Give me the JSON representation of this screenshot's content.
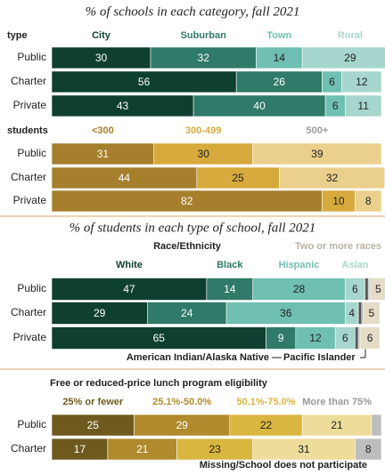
{
  "chart_data": [
    {
      "type": "bar",
      "orientation": "horizontal",
      "stacked": true,
      "title": "% of schools in each category, fall 2021",
      "group_label": "type",
      "categories": [
        "Public",
        "Charter",
        "Private"
      ],
      "xlim": [
        0,
        100
      ],
      "series": [
        {
          "name": "City",
          "color": "#0f3f31",
          "values": [
            30,
            56,
            43
          ]
        },
        {
          "name": "Suburban",
          "color": "#2f7a68",
          "values": [
            32,
            26,
            40
          ]
        },
        {
          "name": "Town",
          "color": "#6fbfb2",
          "values": [
            14,
            6,
            6
          ]
        },
        {
          "name": "Rural",
          "color": "#a6d6cd",
          "values": [
            29,
            12,
            11
          ]
        }
      ]
    },
    {
      "type": "bar",
      "orientation": "horizontal",
      "stacked": true,
      "group_label": "students",
      "categories": [
        "Public",
        "Charter",
        "Private"
      ],
      "xlim": [
        0,
        100
      ],
      "series": [
        {
          "name": "<300",
          "color": "#a67f2c",
          "values": [
            31,
            44,
            82
          ]
        },
        {
          "name": "300-499",
          "color": "#d6aa3c",
          "values": [
            30,
            25,
            10
          ]
        },
        {
          "name": "500+",
          "color": "#ead08c",
          "values": [
            39,
            32,
            8
          ]
        }
      ]
    },
    {
      "type": "bar",
      "orientation": "horizontal",
      "stacked": true,
      "title": "% of students in each type of school, fall 2021",
      "subtitle": "Race/Ethnicity",
      "categories": [
        "Public",
        "Charter",
        "Private"
      ],
      "xlim": [
        0,
        100
      ],
      "series": [
        {
          "name": "White",
          "color": "#0f3f31",
          "values": [
            47,
            29,
            65
          ]
        },
        {
          "name": "Black",
          "color": "#2f7a68",
          "values": [
            14,
            24,
            9
          ]
        },
        {
          "name": "Hispanic",
          "color": "#6fbfb2",
          "values": [
            28,
            36,
            12
          ]
        },
        {
          "name": "Asian",
          "color": "#a6d6cd",
          "values": [
            6,
            4,
            6
          ]
        },
        {
          "name": "American Indian/Alaska Native",
          "color": "#555555",
          "values": [
            1,
            1,
            1
          ]
        },
        {
          "name": "Pacific Islander",
          "color": "#b0b0b0",
          "values": [
            0.5,
            0.5,
            0.5
          ]
        },
        {
          "name": "Two or more races",
          "color": "#e4dcc6",
          "values": [
            5,
            5,
            6
          ]
        }
      ]
    },
    {
      "type": "bar",
      "orientation": "horizontal",
      "stacked": true,
      "subtitle": "Free or reduced-price lunch program eligibility",
      "categories": [
        "Public",
        "Charter"
      ],
      "xlim": [
        0,
        100
      ],
      "series": [
        {
          "name": "25% or fewer",
          "color": "#6e5a1e",
          "values": [
            25,
            17
          ]
        },
        {
          "name": "25.1%-50.0%",
          "color": "#b08a2c",
          "values": [
            29,
            21
          ]
        },
        {
          "name": "50.1%-75.0%",
          "color": "#d8b640",
          "values": [
            22,
            23
          ]
        },
        {
          "name": "More than 75%",
          "color": "#eedc9a",
          "values": [
            21,
            31
          ]
        },
        {
          "name": "Missing/School does not participate",
          "color": "#bdbdbd",
          "values": [
            3,
            8
          ]
        }
      ]
    }
  ]
}
